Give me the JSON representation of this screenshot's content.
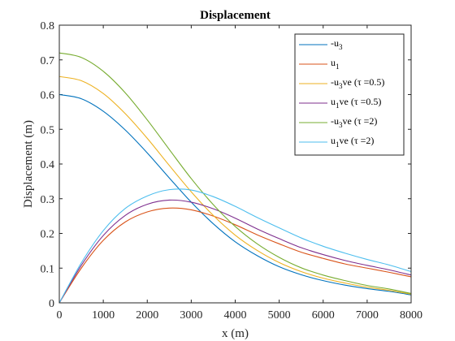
{
  "chart_data": {
    "type": "line",
    "title": "Displacement",
    "xlabel": "x (m)",
    "ylabel": "Displacement (m)",
    "xlim": [
      0,
      8000
    ],
    "ylim": [
      0,
      0.8
    ],
    "xticks": [
      0,
      1000,
      2000,
      3000,
      4000,
      5000,
      6000,
      7000,
      8000
    ],
    "yticks": [
      0,
      0.1,
      0.2,
      0.3,
      0.4,
      0.5,
      0.6,
      0.7,
      0.8
    ],
    "xtick_labels": [
      "0",
      "1000",
      "2000",
      "3000",
      "4000",
      "5000",
      "6000",
      "7000",
      "8000"
    ],
    "ytick_labels": [
      "0",
      "0.1",
      "0.2",
      "0.3",
      "0.4",
      "0.5",
      "0.6",
      "0.7",
      "0.8"
    ],
    "grid": false,
    "legend_position": "top-right",
    "x": [
      0,
      500,
      1000,
      1500,
      2000,
      2500,
      3000,
      3500,
      4000,
      4500,
      5000,
      5500,
      6000,
      6500,
      7000,
      7500,
      8000
    ],
    "series": [
      {
        "legend": {
          "main": "-u",
          "sub": "3",
          "suffix": ""
        },
        "color": "#0072BD",
        "values": [
          0.6,
          0.588,
          0.552,
          0.498,
          0.432,
          0.36,
          0.29,
          0.228,
          0.176,
          0.136,
          0.104,
          0.081,
          0.064,
          0.051,
          0.041,
          0.033,
          0.023
        ]
      },
      {
        "legend": {
          "main": "u",
          "sub": "1",
          "suffix": ""
        },
        "color": "#D95319",
        "values": [
          0,
          0.1,
          0.18,
          0.233,
          0.262,
          0.273,
          0.268,
          0.25,
          0.225,
          0.196,
          0.17,
          0.146,
          0.128,
          0.112,
          0.1,
          0.088,
          0.075
        ]
      },
      {
        "legend": {
          "main": "-u",
          "sub": "3",
          "suffix": "ve (τ =0.5)"
        },
        "color": "#EDB120",
        "values": [
          0.652,
          0.64,
          0.603,
          0.545,
          0.474,
          0.396,
          0.32,
          0.252,
          0.195,
          0.151,
          0.116,
          0.09,
          0.071,
          0.057,
          0.045,
          0.036,
          0.025
        ]
      },
      {
        "legend": {
          "main": "u",
          "sub": "1",
          "suffix": "ve (τ =0.5)"
        },
        "color": "#7E2F8E",
        "values": [
          0,
          0.108,
          0.194,
          0.252,
          0.284,
          0.296,
          0.29,
          0.271,
          0.244,
          0.213,
          0.185,
          0.159,
          0.139,
          0.122,
          0.108,
          0.095,
          0.08
        ]
      },
      {
        "legend": {
          "main": "-u",
          "sub": "3",
          "suffix": "ve (τ =2)"
        },
        "color": "#77AC30",
        "values": [
          0.72,
          0.707,
          0.667,
          0.605,
          0.527,
          0.442,
          0.358,
          0.283,
          0.22,
          0.17,
          0.131,
          0.101,
          0.08,
          0.064,
          0.05,
          0.04,
          0.027
        ]
      },
      {
        "legend": {
          "main": "u",
          "sub": "1",
          "suffix": "ve (τ =2)"
        },
        "color": "#4DBEEE",
        "values": [
          0,
          0.115,
          0.208,
          0.272,
          0.308,
          0.326,
          0.325,
          0.306,
          0.278,
          0.246,
          0.216,
          0.187,
          0.163,
          0.143,
          0.125,
          0.109,
          0.09
        ]
      }
    ]
  }
}
